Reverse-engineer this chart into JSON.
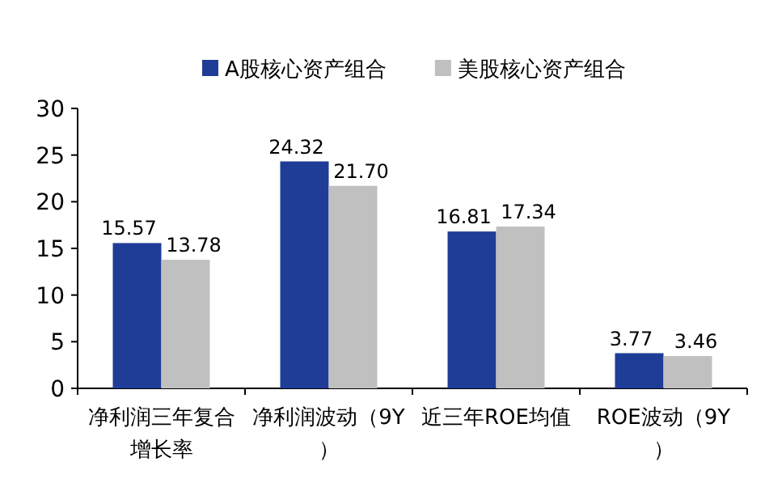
{
  "chart_data": {
    "type": "bar",
    "categories": [
      "净利润三年复合增长率",
      "净利润波动（9Y）",
      "近三年ROE均值",
      "ROE波动（9Y）"
    ],
    "series": [
      {
        "name": "A股核心资产组合",
        "color": "#1f3c96",
        "values": [
          15.57,
          24.32,
          16.81,
          3.77
        ],
        "value_labels": [
          "15.57",
          "24.32",
          "16.81",
          "3.77"
        ]
      },
      {
        "name": "美股核心资产组合",
        "color": "#c0c0c0",
        "values": [
          13.78,
          21.7,
          17.34,
          3.46
        ],
        "value_labels": [
          "13.78",
          "21.70",
          "17.34",
          "3.46"
        ]
      }
    ],
    "ylim": [
      0,
      30
    ],
    "yticks": [
      0,
      5,
      10,
      15,
      20,
      25,
      30
    ],
    "legend": "top"
  }
}
